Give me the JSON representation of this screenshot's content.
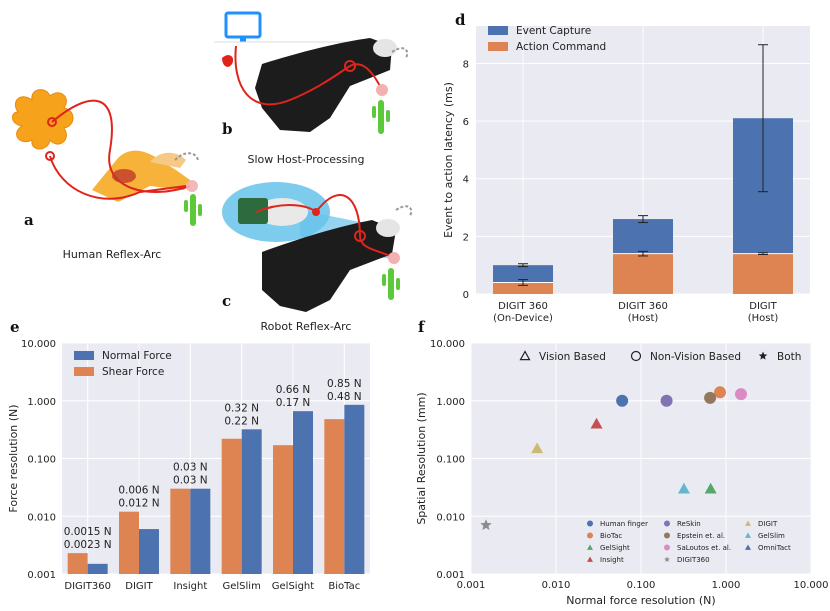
{
  "panels": {
    "a": {
      "letter": "a",
      "caption": "Human Reflex-Arc"
    },
    "b": {
      "letter": "b",
      "caption": "Slow Host-Processing"
    },
    "c": {
      "letter": "c",
      "caption": "Robot Reflex-Arc"
    },
    "d": {
      "letter": "d"
    },
    "e": {
      "letter": "e"
    },
    "f": {
      "letter": "f"
    }
  },
  "colors": {
    "blue": "#4c72b0",
    "orange": "#dd8452",
    "grid_bg": "#eaeaf2",
    "red_nerve": "#e0241b",
    "cactus": "#5cc93a",
    "monitor": "#1e90ff"
  },
  "chart_data": [
    {
      "id": "d",
      "type": "bar",
      "stacked": true,
      "categories": [
        "DIGIT 360\n(On-Device)",
        "DIGIT 360\n(Host)",
        "DIGIT\n(Host)"
      ],
      "ylabel": "Event to action latency (ms)",
      "ylim": [
        0,
        9.3
      ],
      "yticks": [
        0,
        2,
        4,
        6,
        8
      ],
      "grid": true,
      "legend": "top-left",
      "series": [
        {
          "name": "Action Command",
          "color": "#dd8452",
          "values": [
            0.4,
            1.4,
            1.4
          ],
          "err": [
            0.1,
            0.08,
            0.03
          ]
        },
        {
          "name": "Event Capture",
          "color": "#4c72b0",
          "values": [
            0.6,
            1.2,
            4.7
          ],
          "err": [
            0.05,
            0.12,
            2.55
          ]
        }
      ]
    },
    {
      "id": "e",
      "type": "bar",
      "scale": "log",
      "categories": [
        "DIGIT360",
        "DIGIT",
        "Insight",
        "GelSlim",
        "GelSight",
        "BioTac"
      ],
      "ylabel": "Force resolution (N)",
      "ylim": [
        0.001,
        10
      ],
      "yticks": [
        "0.001",
        "0.010",
        "0.100",
        "1.000",
        "10.000"
      ],
      "grid": true,
      "legend": "top-left",
      "series": [
        {
          "name": "Shear Force",
          "color": "#dd8452",
          "values": [
            0.0023,
            0.012,
            0.03,
            0.22,
            0.17,
            0.48
          ]
        },
        {
          "name": "Normal Force",
          "color": "#4c72b0",
          "values": [
            0.0015,
            0.006,
            0.03,
            0.32,
            0.66,
            0.85
          ]
        }
      ],
      "labels_normal": [
        "0.0015 N",
        "0.006 N",
        "0.03 N",
        "0.32 N",
        "0.66 N",
        "0.85 N"
      ],
      "labels_shear": [
        "0.0023 N",
        "0.012 N",
        "0.03 N",
        "0.22 N",
        "0.17 N",
        "0.48 N"
      ]
    },
    {
      "id": "f",
      "type": "scatter",
      "scale": "log-log",
      "xlabel": "Normal force resolution (N)",
      "ylabel": "Spatial Resolution (mm)",
      "xlim": [
        0.001,
        10
      ],
      "ylim": [
        0.001,
        10
      ],
      "xticks": [
        "0.001",
        "0.010",
        "0.100",
        "1.000",
        "10.000"
      ],
      "yticks": [
        "0.001",
        "0.010",
        "0.100",
        "1.000",
        "10.000"
      ],
      "grid": true,
      "type_legend": [
        {
          "marker": "triangle-open",
          "label": "Vision Based"
        },
        {
          "marker": "circle-open",
          "label": "Non-Vision Based"
        },
        {
          "marker": "star",
          "label": "Both"
        }
      ],
      "points": [
        {
          "name": "Human finger",
          "x": 0.06,
          "y": 1.0,
          "marker": "circle",
          "color": "#4c72b0"
        },
        {
          "name": "BioTac",
          "x": 0.85,
          "y": 1.4,
          "marker": "circle",
          "color": "#dd8452"
        },
        {
          "name": "GelSight",
          "x": 0.66,
          "y": 0.03,
          "marker": "triangle",
          "color": "#55a868"
        },
        {
          "name": "Insight",
          "x": 0.03,
          "y": 0.4,
          "marker": "triangle",
          "color": "#c44e52"
        },
        {
          "name": "ReSkin",
          "x": 0.2,
          "y": 1.0,
          "marker": "circle",
          "color": "#8172b3"
        },
        {
          "name": "Epstein et. al.",
          "x": 0.65,
          "y": 1.12,
          "marker": "circle",
          "color": "#937860"
        },
        {
          "name": "SaLoutos et. al.",
          "x": 1.5,
          "y": 1.3,
          "marker": "circle",
          "color": "#da8bc3"
        },
        {
          "name": "DIGIT360",
          "x": 0.0015,
          "y": 0.007,
          "marker": "star",
          "color": "#8c8c8c"
        },
        {
          "name": "DIGIT",
          "x": 0.006,
          "y": 0.15,
          "marker": "triangle",
          "color": "#ccb974"
        },
        {
          "name": "GelSlim",
          "x": 0.32,
          "y": 0.03,
          "marker": "triangle",
          "color": "#64b5cd"
        },
        {
          "name": "OmniTact",
          "x": null,
          "y": null,
          "marker": "triangle",
          "color": "#4c72b0"
        }
      ]
    }
  ]
}
